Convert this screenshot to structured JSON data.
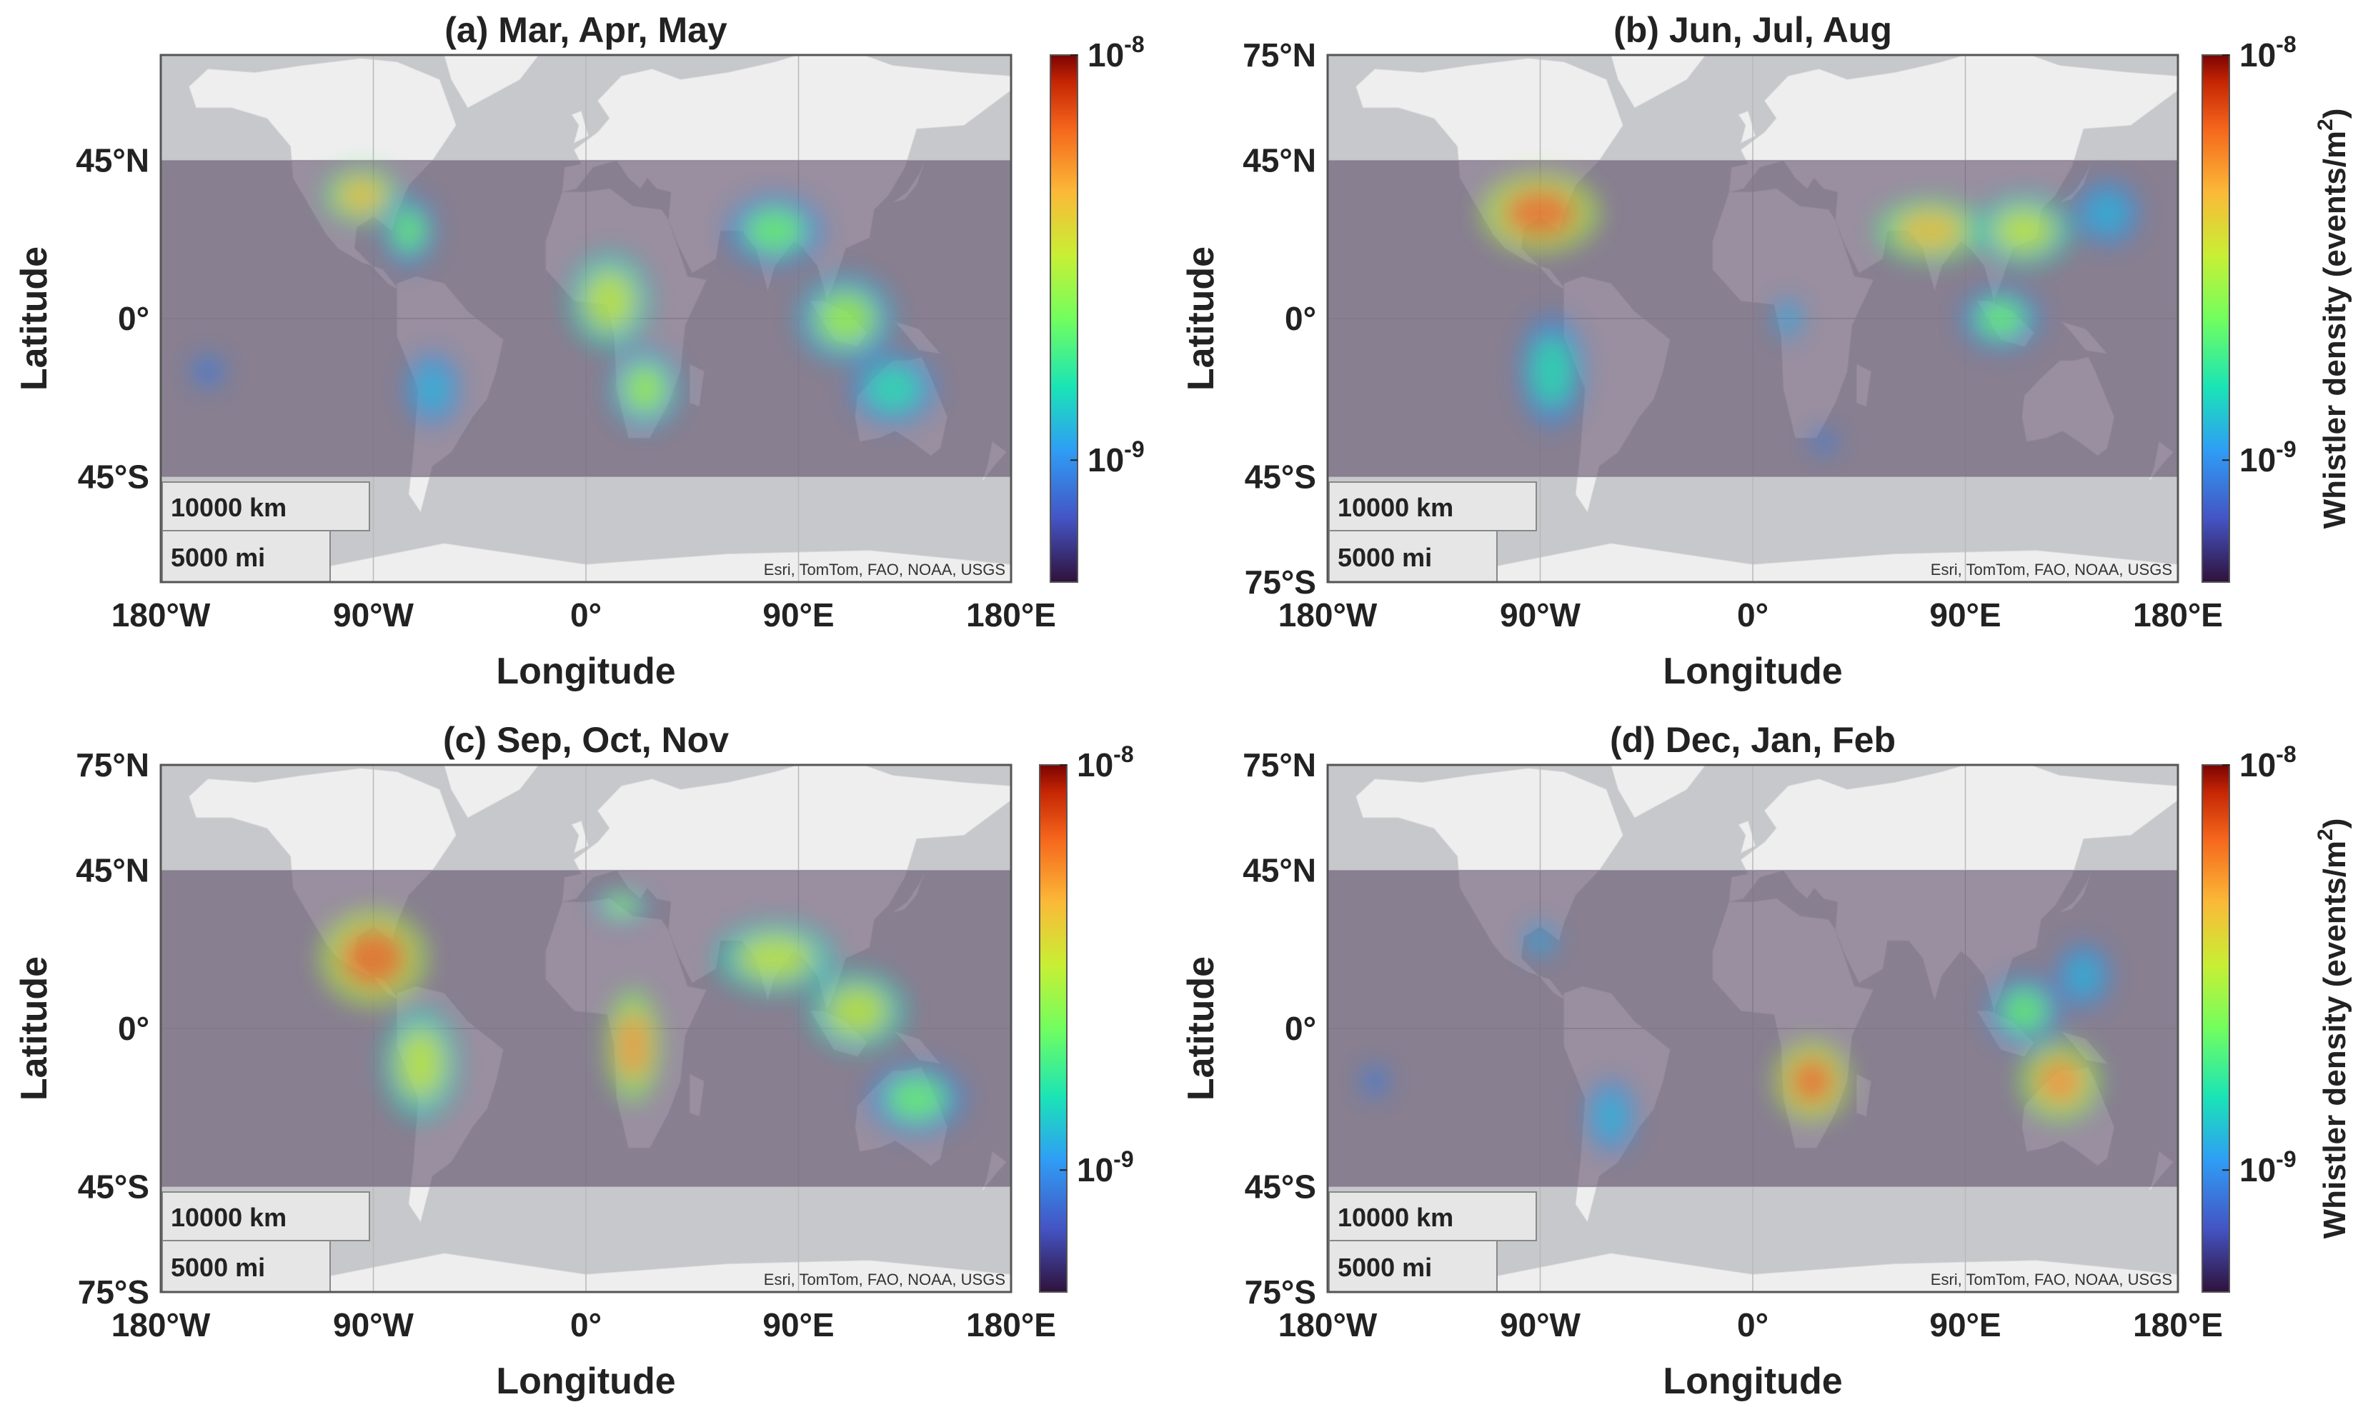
{
  "figure": {
    "axis_labels": {
      "x": "Longitude",
      "y": "Latitude"
    },
    "longitude_ticks": [
      "180°W",
      "90°W",
      "0°",
      "90°E",
      "180°E"
    ],
    "latitude_ticks": [
      "75°N",
      "45°N",
      "0°",
      "45°S",
      "75°S"
    ],
    "basemap_attribution": "Esri, TomTom, FAO, NOAA, USGS",
    "scale_bar": {
      "km_label": "10000 km",
      "mi_label": "5000 mi"
    },
    "band_extent_lat": [
      45,
      -45
    ],
    "colorbar": {
      "label_main": "Whistler density (events/m",
      "label_sup": "2",
      "label_end": ")",
      "tick_base": "10",
      "ticks": [
        {
          "exponent": "-8",
          "value": 1e-08
        },
        {
          "exponent": "-9",
          "value": 1e-09
        }
      ],
      "scale": "log",
      "colormap": "turbo"
    },
    "colors": {
      "ocean": "#c6c8cb",
      "land": "#eeeeee",
      "band_overlay": "#5b4a68",
      "scale_box": "#e6e6e6",
      "axis": "#555555"
    }
  },
  "panels": [
    {
      "id": "a",
      "title": "(a) Mar, Apr, May",
      "show_lat_ticks": [
        "45°N",
        "0°",
        "45°S"
      ],
      "show_colorbar_label": false
    },
    {
      "id": "b",
      "title": "(b) Jun, Jul, Aug",
      "show_lat_ticks": [
        "75°N",
        "45°N",
        "0°",
        "45°S",
        "75°S"
      ],
      "show_colorbar_label": true
    },
    {
      "id": "c",
      "title": "(c) Sep, Oct, Nov",
      "show_lat_ticks": [
        "75°N",
        "45°N",
        "0°",
        "45°S",
        "75°S"
      ],
      "show_colorbar_label": false
    },
    {
      "id": "d",
      "title": "(d) Dec, Jan, Feb",
      "show_lat_ticks": [
        "75°N",
        "45°N",
        "0°",
        "45°S",
        "75°S"
      ],
      "show_colorbar_label": true
    }
  ],
  "chart_data": [
    {
      "type": "heatmap",
      "panel": "a",
      "title": "(a) Mar, Apr, May",
      "xlabel": "Longitude",
      "ylabel": "Latitude",
      "xlim": [
        -180,
        180
      ],
      "ylim": [
        -75,
        75
      ],
      "colorbar_range": [
        5e-10,
        1e-08
      ],
      "hotspots": [
        {
          "lon": -95,
          "lat": 35,
          "value": 4e-09,
          "lon_spread": 14,
          "lat_spread": 7
        },
        {
          "lon": -75,
          "lat": 25,
          "value": 2e-09,
          "lon_spread": 10,
          "lat_spread": 9
        },
        {
          "lon": -65,
          "lat": -20,
          "value": 1.2e-09,
          "lon_spread": 10,
          "lat_spread": 9
        },
        {
          "lon": -160,
          "lat": -15,
          "value": 8e-10,
          "lon_spread": 6,
          "lat_spread": 4
        },
        {
          "lon": 10,
          "lat": 5,
          "value": 3e-09,
          "lon_spread": 15,
          "lat_spread": 12
        },
        {
          "lon": 25,
          "lat": -20,
          "value": 2.5e-09,
          "lon_spread": 13,
          "lat_spread": 10
        },
        {
          "lon": 80,
          "lat": 25,
          "value": 2e-09,
          "lon_spread": 18,
          "lat_spread": 9
        },
        {
          "lon": 110,
          "lat": 0,
          "value": 2.5e-09,
          "lon_spread": 18,
          "lat_spread": 11
        },
        {
          "lon": 130,
          "lat": -20,
          "value": 1.5e-09,
          "lon_spread": 16,
          "lat_spread": 9
        }
      ]
    },
    {
      "type": "heatmap",
      "panel": "b",
      "title": "(b) Jun, Jul, Aug",
      "xlabel": "Longitude",
      "ylabel": "Latitude",
      "xlim": [
        -180,
        180
      ],
      "ylim": [
        -75,
        75
      ],
      "colorbar_range": [
        5e-10,
        1e-08
      ],
      "hotspots": [
        {
          "lon": -90,
          "lat": 30,
          "value": 6e-09,
          "lon_spread": 22,
          "lat_spread": 10
        },
        {
          "lon": -85,
          "lat": -15,
          "value": 1.5e-09,
          "lon_spread": 12,
          "lat_spread": 14
        },
        {
          "lon": 15,
          "lat": 0,
          "value": 1.2e-09,
          "lon_spread": 5,
          "lat_spread": 5
        },
        {
          "lon": 75,
          "lat": 25,
          "value": 4e-09,
          "lon_spread": 20,
          "lat_spread": 8
        },
        {
          "lon": 115,
          "lat": 25,
          "value": 3e-09,
          "lon_spread": 18,
          "lat_spread": 9
        },
        {
          "lon": 105,
          "lat": 0,
          "value": 2e-09,
          "lon_spread": 15,
          "lat_spread": 8
        },
        {
          "lon": 150,
          "lat": 30,
          "value": 1.2e-09,
          "lon_spread": 12,
          "lat_spread": 8
        },
        {
          "lon": 30,
          "lat": -35,
          "value": 8e-10,
          "lon_spread": 5,
          "lat_spread": 3
        }
      ]
    },
    {
      "type": "heatmap",
      "panel": "c",
      "title": "(c) Sep, Oct, Nov",
      "xlabel": "Longitude",
      "ylabel": "Latitude",
      "xlim": [
        -180,
        180
      ],
      "ylim": [
        -75,
        75
      ],
      "colorbar_range": [
        5e-10,
        1e-08
      ],
      "hotspots": [
        {
          "lon": -90,
          "lat": 20,
          "value": 6e-09,
          "lon_spread": 20,
          "lat_spread": 12
        },
        {
          "lon": -70,
          "lat": -10,
          "value": 3e-09,
          "lon_spread": 14,
          "lat_spread": 14
        },
        {
          "lon": 15,
          "lat": 35,
          "value": 2.5e-09,
          "lon_spread": 10,
          "lat_spread": 4
        },
        {
          "lon": 20,
          "lat": -5,
          "value": 5e-09,
          "lon_spread": 10,
          "lat_spread": 14
        },
        {
          "lon": 80,
          "lat": 20,
          "value": 3e-09,
          "lon_spread": 22,
          "lat_spread": 9
        },
        {
          "lon": 115,
          "lat": 5,
          "value": 3e-09,
          "lon_spread": 18,
          "lat_spread": 10
        },
        {
          "lon": 140,
          "lat": -20,
          "value": 2e-09,
          "lon_spread": 18,
          "lat_spread": 9
        }
      ]
    },
    {
      "type": "heatmap",
      "panel": "d",
      "title": "(d) Dec, Jan, Feb",
      "xlabel": "Longitude",
      "ylabel": "Latitude",
      "xlim": [
        -180,
        180
      ],
      "ylim": [
        -75,
        75
      ],
      "colorbar_range": [
        5e-10,
        1e-08
      ],
      "hotspots": [
        {
          "lon": -90,
          "lat": 25,
          "value": 1.2e-09,
          "lon_spread": 6,
          "lat_spread": 4
        },
        {
          "lon": -60,
          "lat": -25,
          "value": 1.2e-09,
          "lon_spread": 9,
          "lat_spread": 9
        },
        {
          "lon": 25,
          "lat": -15,
          "value": 6e-09,
          "lon_spread": 14,
          "lat_spread": 10
        },
        {
          "lon": 130,
          "lat": -15,
          "value": 5e-09,
          "lon_spread": 15,
          "lat_spread": 10
        },
        {
          "lon": 115,
          "lat": 5,
          "value": 2e-09,
          "lon_spread": 14,
          "lat_spread": 9
        },
        {
          "lon": 140,
          "lat": 15,
          "value": 1.2e-09,
          "lon_spread": 10,
          "lat_spread": 8
        },
        {
          "lon": -160,
          "lat": -15,
          "value": 8e-10,
          "lon_spread": 5,
          "lat_spread": 4
        }
      ]
    }
  ]
}
